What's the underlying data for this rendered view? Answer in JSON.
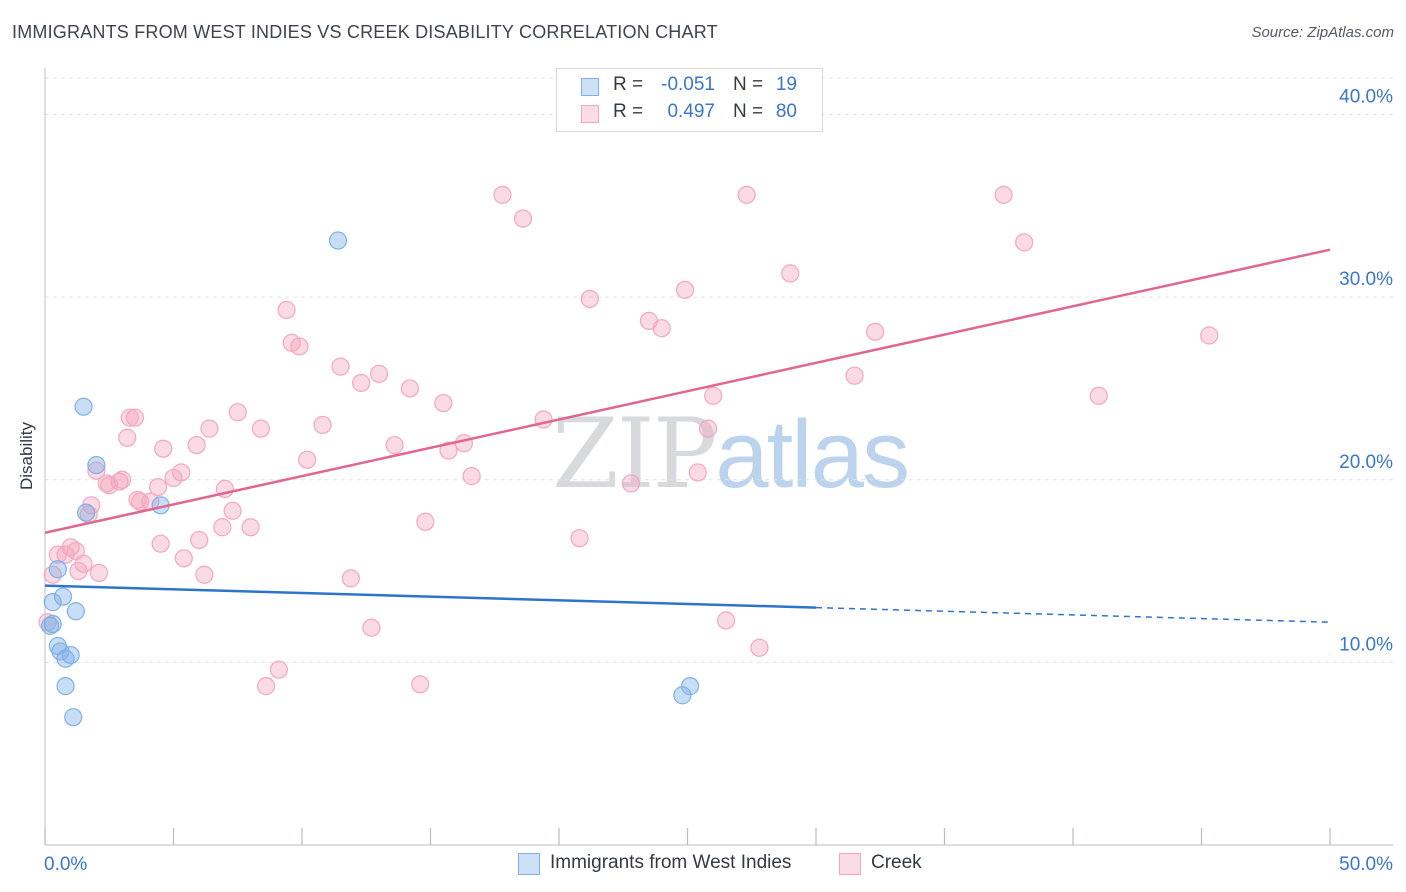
{
  "chart_data": {
    "type": "scatter",
    "title": "IMMIGRANTS FROM WEST INDIES VS CREEK DISABILITY CORRELATION CHART",
    "source": "Source: ZipAtlas.com",
    "xlabel": "",
    "ylabel": "Disability",
    "xlim": [
      0,
      50
    ],
    "ylim": [
      0,
      42
    ],
    "x_tick_labels": [
      "0.0%",
      "50.0%"
    ],
    "y_tick_values": [
      10,
      20,
      30,
      40
    ],
    "y_tick_labels": [
      "10.0%",
      "20.0%",
      "30.0%",
      "40.0%"
    ],
    "grid": true,
    "legend_position": "top-center",
    "watermark": {
      "part1": "ZIP",
      "part2": "atlas"
    },
    "series": [
      {
        "name": "Immigrants from West Indies",
        "color": "#7fb1e8",
        "line_color": "#2e74c9",
        "r_label": "R =",
        "r_value": "-0.051",
        "n_label": "N =",
        "n_value": "19",
        "trend": {
          "x": [
            0,
            30
          ],
          "y": [
            14.2,
            13.0
          ],
          "dashed_to_x": 50,
          "dashed_y_end": 12.2
        },
        "points": [
          [
            0.3,
            12.1
          ],
          [
            0.3,
            13.3
          ],
          [
            0.5,
            10.9
          ],
          [
            0.5,
            15.1
          ],
          [
            0.6,
            10.6
          ],
          [
            0.7,
            13.6
          ],
          [
            0.8,
            10.2
          ],
          [
            0.8,
            8.7
          ],
          [
            1.0,
            10.4
          ],
          [
            1.1,
            7.0
          ],
          [
            1.2,
            12.8
          ],
          [
            1.5,
            24.0
          ],
          [
            1.6,
            18.2
          ],
          [
            2.0,
            20.8
          ],
          [
            4.5,
            18.6
          ],
          [
            11.4,
            33.1
          ],
          [
            24.8,
            8.2
          ],
          [
            25.1,
            8.7
          ],
          [
            0.2,
            12.0
          ]
        ]
      },
      {
        "name": "Creek",
        "color": "#f4a7bf",
        "line_color": "#e0678f",
        "r_label": "R =",
        "r_value": "0.497",
        "n_label": "N =",
        "n_value": "80",
        "trend": {
          "x": [
            0,
            50
          ],
          "y": [
            17.1,
            32.6
          ]
        },
        "points": [
          [
            0.1,
            12.2
          ],
          [
            0.3,
            14.8
          ],
          [
            0.5,
            15.9
          ],
          [
            0.8,
            15.9
          ],
          [
            1.0,
            16.3
          ],
          [
            1.2,
            16.1
          ],
          [
            1.3,
            15.0
          ],
          [
            1.5,
            15.4
          ],
          [
            1.7,
            18.1
          ],
          [
            1.8,
            18.6
          ],
          [
            2.0,
            20.5
          ],
          [
            2.1,
            14.9
          ],
          [
            2.4,
            19.8
          ],
          [
            2.9,
            19.9
          ],
          [
            3.0,
            20.0
          ],
          [
            3.2,
            22.3
          ],
          [
            3.3,
            23.4
          ],
          [
            3.5,
            23.4
          ],
          [
            3.7,
            18.8
          ],
          [
            4.1,
            18.8
          ],
          [
            4.4,
            19.6
          ],
          [
            4.5,
            16.5
          ],
          [
            4.6,
            21.7
          ],
          [
            5.0,
            20.1
          ],
          [
            5.3,
            20.4
          ],
          [
            5.4,
            15.7
          ],
          [
            5.9,
            21.9
          ],
          [
            6.0,
            16.7
          ],
          [
            6.2,
            14.8
          ],
          [
            6.4,
            22.8
          ],
          [
            6.9,
            17.4
          ],
          [
            7.0,
            19.5
          ],
          [
            7.3,
            18.3
          ],
          [
            7.5,
            23.7
          ],
          [
            8.0,
            17.4
          ],
          [
            8.4,
            22.8
          ],
          [
            8.6,
            8.7
          ],
          [
            9.1,
            9.6
          ],
          [
            9.4,
            29.3
          ],
          [
            9.6,
            27.5
          ],
          [
            9.9,
            27.3
          ],
          [
            10.2,
            21.1
          ],
          [
            10.8,
            23.0
          ],
          [
            11.5,
            26.2
          ],
          [
            11.9,
            14.6
          ],
          [
            12.3,
            25.3
          ],
          [
            12.7,
            11.9
          ],
          [
            13.0,
            25.8
          ],
          [
            13.6,
            21.9
          ],
          [
            14.2,
            25.0
          ],
          [
            14.6,
            8.8
          ],
          [
            14.8,
            17.7
          ],
          [
            15.5,
            24.2
          ],
          [
            15.7,
            21.6
          ],
          [
            16.3,
            22.0
          ],
          [
            16.6,
            20.2
          ],
          [
            17.8,
            35.6
          ],
          [
            18.6,
            34.3
          ],
          [
            19.4,
            23.3
          ],
          [
            20.8,
            16.8
          ],
          [
            21.2,
            29.9
          ],
          [
            22.8,
            19.8
          ],
          [
            23.5,
            28.7
          ],
          [
            24.0,
            28.3
          ],
          [
            24.9,
            30.4
          ],
          [
            25.4,
            20.4
          ],
          [
            25.8,
            22.8
          ],
          [
            26.0,
            24.6
          ],
          [
            26.5,
            12.3
          ],
          [
            27.3,
            35.6
          ],
          [
            27.8,
            10.8
          ],
          [
            29.0,
            31.3
          ],
          [
            31.5,
            25.7
          ],
          [
            32.3,
            28.1
          ],
          [
            37.3,
            35.6
          ],
          [
            38.1,
            33.0
          ],
          [
            41.0,
            24.6
          ],
          [
            45.3,
            27.9
          ],
          [
            3.6,
            18.9
          ],
          [
            2.5,
            19.7
          ]
        ]
      }
    ]
  }
}
